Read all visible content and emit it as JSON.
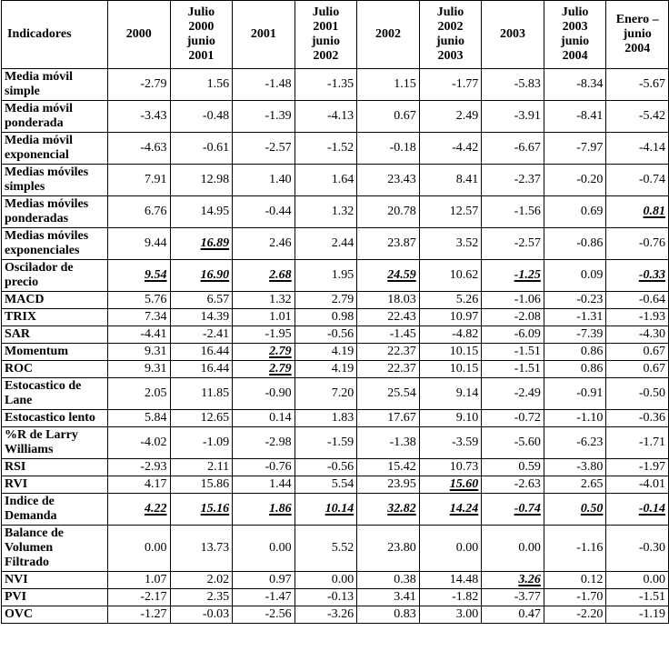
{
  "table": {
    "headers": [
      "Indicadores",
      "2000",
      "Julio\n2000\njunio\n2001",
      "2001",
      "Julio\n2001\njunio\n2002",
      "2002",
      "Julio\n2002\njunio\n2003",
      "2003",
      "Julio\n2003\njunio\n2004",
      "Enero –\njunio\n2004"
    ],
    "rows": [
      {
        "label": "Media móvil\nsimple",
        "values": [
          "-2.79",
          "1.56",
          "-1.48",
          "-1.35",
          "1.15",
          "-1.77",
          "-5.83",
          "-8.34",
          "-5.67"
        ],
        "highlighted": []
      },
      {
        "label": "Media móvil\nponderada",
        "values": [
          "-3.43",
          "-0.48",
          "-1.39",
          "-4.13",
          "0.67",
          "2.49",
          "-3.91",
          "-8.41",
          "-5.42"
        ],
        "highlighted": []
      },
      {
        "label": "Media móvil\nexponencial",
        "values": [
          "-4.63",
          "-0.61",
          "-2.57",
          "-1.52",
          "-0.18",
          "-4.42",
          "-6.67",
          "-7.97",
          "-4.14"
        ],
        "highlighted": []
      },
      {
        "label": "Medias móviles\nsimples",
        "values": [
          "7.91",
          "12.98",
          "1.40",
          "1.64",
          "23.43",
          "8.41",
          "-2.37",
          "-0.20",
          "-0.74"
        ],
        "highlighted": []
      },
      {
        "label": "Medias móviles\nponderadas",
        "values": [
          "6.76",
          "14.95",
          "-0.44",
          "1.32",
          "20.78",
          "12.57",
          "-1.56",
          "0.69",
          "0.81"
        ],
        "highlighted": [
          8
        ]
      },
      {
        "label": "Medias móviles\nexponenciales",
        "values": [
          "9.44",
          "16.89",
          "2.46",
          "2.44",
          "23.87",
          "3.52",
          "-2.57",
          "-0.86",
          "-0.76"
        ],
        "highlighted": [
          1
        ]
      },
      {
        "label": "Oscilador de\nprecio",
        "values": [
          "9.54",
          "16.90",
          "2.68",
          "1.95",
          "24.59",
          "10.62",
          "-1.25",
          "0.09",
          "-0.33"
        ],
        "highlighted": [
          0,
          1,
          2,
          4,
          6,
          8
        ]
      },
      {
        "label": "MACD",
        "values": [
          "5.76",
          "6.57",
          "1.32",
          "2.79",
          "18.03",
          "5.26",
          "-1.06",
          "-0.23",
          "-0.64"
        ],
        "highlighted": []
      },
      {
        "label": "TRIX",
        "values": [
          "7.34",
          "14.39",
          "1.01",
          "0.98",
          "22.43",
          "10.97",
          "-2.08",
          "-1.31",
          "-1.93"
        ],
        "highlighted": []
      },
      {
        "label": "SAR",
        "values": [
          "-4.41",
          "-2.41",
          "-1.95",
          "-0.56",
          "-1.45",
          "-4.82",
          "-6.09",
          "-7.39",
          "-4.30"
        ],
        "highlighted": []
      },
      {
        "label": "Momentum",
        "values": [
          "9.31",
          "16.44",
          "2.79",
          "4.19",
          "22.37",
          "10.15",
          "-1.51",
          "0.86",
          "0.67"
        ],
        "highlighted": [
          2
        ]
      },
      {
        "label": "ROC",
        "values": [
          "9.31",
          "16.44",
          "2.79",
          "4.19",
          "22.37",
          "10.15",
          "-1.51",
          "0.86",
          "0.67"
        ],
        "highlighted": [
          2
        ]
      },
      {
        "label": "Estocastico de\nLane",
        "values": [
          "2.05",
          "11.85",
          "-0.90",
          "7.20",
          "25.54",
          "9.14",
          "-2.49",
          "-0.91",
          "-0.50"
        ],
        "highlighted": []
      },
      {
        "label": "Estocastico lento",
        "values": [
          "5.84",
          "12.65",
          "0.14",
          "1.83",
          "17.67",
          "9.10",
          "-0.72",
          "-1.10",
          "-0.36"
        ],
        "highlighted": []
      },
      {
        "label": "%R de Larry\nWilliams",
        "values": [
          "-4.02",
          "-1.09",
          "-2.98",
          "-1.59",
          "-1.38",
          "-3.59",
          "-5.60",
          "-6.23",
          "-1.71"
        ],
        "highlighted": []
      },
      {
        "label": "RSI",
        "values": [
          "-2.93",
          "2.11",
          "-0.76",
          "-0.56",
          "15.42",
          "10.73",
          "0.59",
          "-3.80",
          "-1.97"
        ],
        "highlighted": []
      },
      {
        "label": "RVI",
        "values": [
          "4.17",
          "15.86",
          "1.44",
          "5.54",
          "23.95",
          "15.60",
          "-2.63",
          "2.65",
          "-4.01"
        ],
        "highlighted": [
          5
        ]
      },
      {
        "label": "Indice de\nDemanda",
        "values": [
          "4.22",
          "15.16",
          "1.86",
          "10.14",
          "32.82",
          "14.24",
          "-0.74",
          "0.50",
          "-0.14"
        ],
        "highlighted": [
          0,
          1,
          2,
          3,
          4,
          5,
          6,
          7,
          8
        ]
      },
      {
        "label": "Balance de\nVolumen\nFiltrado",
        "values": [
          "0.00",
          "13.73",
          "0.00",
          "5.52",
          "23.80",
          "0.00",
          "0.00",
          "-1.16",
          "-0.30"
        ],
        "highlighted": []
      },
      {
        "label": "NVI",
        "values": [
          "1.07",
          "2.02",
          "0.97",
          "0.00",
          "0.38",
          "14.48",
          "3.26",
          "0.12",
          "0.00"
        ],
        "highlighted": [
          6
        ]
      },
      {
        "label": "PVI",
        "values": [
          "-2.17",
          "2.35",
          "-1.47",
          "-0.13",
          "3.41",
          "-1.82",
          "-3.77",
          "-1.70",
          "-1.51"
        ],
        "highlighted": []
      },
      {
        "label": "OVC",
        "values": [
          "-1.27",
          "-0.03",
          "-2.56",
          "-3.26",
          "0.83",
          "3.00",
          "0.47",
          "-2.20",
          "-1.19"
        ],
        "highlighted": []
      }
    ]
  }
}
